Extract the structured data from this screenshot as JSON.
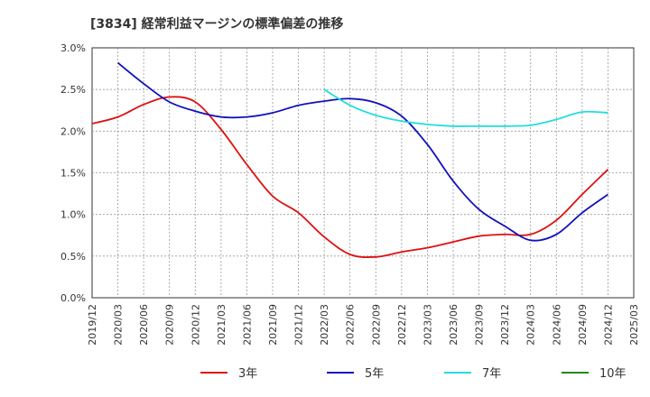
{
  "chart_data": {
    "type": "line",
    "title": "[3834]  経常利益マージンの標準偏差の推移",
    "xlabel": "",
    "ylabel": "",
    "x_ticks": [
      "2019/12",
      "2020/03",
      "2020/06",
      "2020/09",
      "2020/12",
      "2021/03",
      "2021/06",
      "2021/09",
      "2021/12",
      "2022/03",
      "2022/06",
      "2022/09",
      "2022/12",
      "2023/03",
      "2023/06",
      "2023/09",
      "2023/12",
      "2024/03",
      "2024/06",
      "2024/09",
      "2024/12",
      "2025/03"
    ],
    "y_ticks": [
      "0.0%",
      "0.5%",
      "1.0%",
      "1.5%",
      "2.0%",
      "2.5%",
      "3.0%"
    ],
    "ylim": [
      0,
      3.0
    ],
    "grid": true,
    "legend_position": "bottom",
    "series": [
      {
        "name": "3年",
        "color": "#dd1111",
        "x": [
          "2019/12",
          "2020/03",
          "2020/06",
          "2020/09",
          "2020/12",
          "2021/03",
          "2021/06",
          "2021/09",
          "2021/12",
          "2022/03",
          "2022/06",
          "2022/09",
          "2022/12",
          "2023/03",
          "2023/06",
          "2023/09",
          "2023/12",
          "2024/03",
          "2024/06",
          "2024/09",
          "2024/12"
        ],
        "values": [
          2.09,
          2.17,
          2.32,
          2.41,
          2.35,
          2.02,
          1.6,
          1.22,
          1.02,
          0.73,
          0.52,
          0.49,
          0.55,
          0.6,
          0.67,
          0.74,
          0.76,
          0.76,
          0.93,
          1.24,
          1.54
        ]
      },
      {
        "name": "5年",
        "color": "#1111bb",
        "x": [
          "2020/03",
          "2020/06",
          "2020/09",
          "2020/12",
          "2021/03",
          "2021/06",
          "2021/09",
          "2021/12",
          "2022/03",
          "2022/06",
          "2022/09",
          "2022/12",
          "2023/03",
          "2023/06",
          "2023/09",
          "2023/12",
          "2024/03",
          "2024/06",
          "2024/09",
          "2024/12"
        ],
        "values": [
          2.82,
          2.57,
          2.35,
          2.24,
          2.17,
          2.17,
          2.22,
          2.31,
          2.36,
          2.39,
          2.34,
          2.18,
          1.84,
          1.4,
          1.06,
          0.86,
          0.69,
          0.76,
          1.02,
          1.24
        ]
      },
      {
        "name": "7年",
        "color": "#22dddd",
        "x": [
          "2022/03",
          "2022/06",
          "2022/09",
          "2022/12",
          "2023/03",
          "2023/06",
          "2023/09",
          "2023/12",
          "2024/03",
          "2024/06",
          "2024/09",
          "2024/12"
        ],
        "values": [
          2.5,
          2.31,
          2.19,
          2.12,
          2.08,
          2.06,
          2.06,
          2.06,
          2.07,
          2.14,
          2.23,
          2.22
        ]
      },
      {
        "name": "10年",
        "color": "#228822",
        "x": [],
        "values": []
      }
    ]
  }
}
